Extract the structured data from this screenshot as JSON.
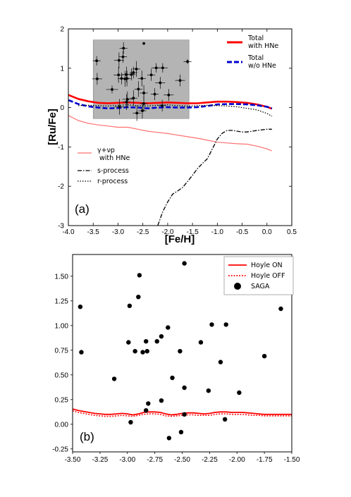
{
  "chart_data": [
    {
      "type": "line",
      "panel_label": "(a)",
      "xlabel": "[Fe/H]",
      "ylabel": "[Ru/Fe]",
      "xlim": [
        -4.0,
        0.5
      ],
      "ylim": [
        -3,
        2
      ],
      "xticks": [
        "-4.0",
        "-3.5",
        "-3.0",
        "-2.5",
        "-2.0",
        "-1.5",
        "-1.0",
        "-0.5",
        "0.0",
        "0.5"
      ],
      "yticks": [
        "-3",
        "-2",
        "-1",
        "0",
        "1",
        "2"
      ],
      "shaded_region": {
        "x": [
          -3.5,
          -1.57
        ],
        "y": [
          -0.28,
          1.72
        ],
        "color": "#b4b4b4"
      },
      "legend_top_right": [
        "Total\nwith HNe",
        "Total\nw/o HNe"
      ],
      "legend_bottom_left": [
        "γ+νp\n with HNe",
        "s-process",
        "r-process"
      ],
      "colors": {
        "total_hne": "#ff0000",
        "total_wo_hne": "#0000cc",
        "gamma": "#ff7070",
        "s": "#000000",
        "r": "#000000",
        "points": "#000000"
      },
      "series": [
        {
          "name": "Total\nwith HNe",
          "style": "solid-thick",
          "x": [
            -4.0,
            -3.8,
            -3.6,
            -3.4,
            -3.2,
            -3.0,
            -2.8,
            -2.6,
            -2.4,
            -2.2,
            -2.0,
            -1.8,
            -1.6,
            -1.4,
            -1.2,
            -1.0,
            -0.8,
            -0.6,
            -0.4,
            -0.2,
            0.0,
            0.1
          ],
          "y": [
            0.32,
            0.22,
            0.16,
            0.12,
            0.11,
            0.12,
            0.13,
            0.12,
            0.11,
            0.12,
            0.13,
            0.12,
            0.11,
            0.11,
            0.13,
            0.15,
            0.15,
            0.14,
            0.12,
            0.08,
            0.02,
            -0.03
          ]
        },
        {
          "name": "Total\nw/o HNe",
          "style": "dashed-thick",
          "x": [
            -4.0,
            -3.8,
            -3.6,
            -3.4,
            -3.2,
            -3.0,
            -2.8,
            -2.6,
            -2.4,
            -2.2,
            -2.0,
            -1.8,
            -1.6,
            -1.4,
            -1.2,
            -1.0,
            -0.8,
            -0.6,
            -0.4,
            -0.2,
            0.0,
            0.1
          ],
          "y": [
            0.19,
            0.09,
            0.03,
            0.0,
            -0.02,
            -0.01,
            0.01,
            0.0,
            -0.02,
            0.0,
            0.01,
            0.0,
            0.0,
            0.01,
            0.04,
            0.08,
            0.09,
            0.09,
            0.08,
            0.06,
            0.02,
            -0.02
          ]
        },
        {
          "name": "γ+νp\n with HNe",
          "style": "solid-thin",
          "x": [
            -4.0,
            -3.8,
            -3.6,
            -3.4,
            -3.2,
            -3.0,
            -2.8,
            -2.6,
            -2.4,
            -2.2,
            -2.0,
            -1.8,
            -1.6,
            -1.4,
            -1.2,
            -1.0,
            -0.8,
            -0.6,
            -0.4,
            -0.2,
            0.0,
            0.1
          ],
          "y": [
            -0.2,
            -0.33,
            -0.4,
            -0.44,
            -0.47,
            -0.5,
            -0.5,
            -0.55,
            -0.6,
            -0.63,
            -0.66,
            -0.7,
            -0.74,
            -0.78,
            -0.83,
            -0.88,
            -0.9,
            -0.92,
            -0.93,
            -0.98,
            -1.05,
            -1.1
          ]
        },
        {
          "name": "s-process",
          "style": "dashdot",
          "x": [
            -2.2,
            -2.1,
            -2.0,
            -1.9,
            -1.8,
            -1.7,
            -1.6,
            -1.5,
            -1.4,
            -1.3,
            -1.2,
            -1.1,
            -1.0,
            -0.9,
            -0.8,
            -0.7,
            -0.6,
            -0.5,
            -0.4,
            -0.3,
            -0.2,
            0.0,
            0.1
          ],
          "y": [
            -3.0,
            -2.65,
            -2.4,
            -2.2,
            -2.12,
            -2.03,
            -1.88,
            -1.72,
            -1.55,
            -1.42,
            -1.3,
            -1.05,
            -0.8,
            -0.65,
            -0.58,
            -0.58,
            -0.6,
            -0.62,
            -0.62,
            -0.6,
            -0.58,
            -0.55,
            -0.55
          ]
        },
        {
          "name": "r-process",
          "style": "dotted",
          "x": [
            -3.8,
            -3.6,
            -3.4,
            -3.2,
            -3.0,
            -2.8,
            -2.6,
            -2.4,
            -2.2,
            -2.0,
            -1.8,
            -1.6,
            -1.4,
            -1.2,
            -1.0,
            -0.8,
            -0.6,
            -0.4,
            -0.2,
            0.0,
            0.1
          ],
          "y": [
            0.05,
            0.06,
            0.05,
            0.04,
            0.06,
            0.07,
            0.05,
            0.04,
            0.06,
            0.07,
            0.05,
            0.04,
            0.05,
            0.06,
            0.05,
            0.04,
            0.02,
            -0.02,
            -0.06,
            -0.15,
            -0.22
          ]
        }
      ],
      "points": [
        {
          "x": -3.43,
          "y": 1.19,
          "xerr": 0.08,
          "yerr": 0.12
        },
        {
          "x": -3.42,
          "y": 0.73,
          "xerr": 0.1,
          "yerr": 0.15
        },
        {
          "x": -3.12,
          "y": 0.46,
          "xerr": 0.12,
          "yerr": 0.1
        },
        {
          "x": -2.99,
          "y": 0.83,
          "xerr": 0.1,
          "yerr": 0.2
        },
        {
          "x": -2.98,
          "y": 1.2,
          "xerr": 0.1,
          "yerr": 0.2
        },
        {
          "x": -2.97,
          "y": 0.02,
          "xerr": 0.1,
          "yerr": 0.2
        },
        {
          "x": -2.93,
          "y": 0.74,
          "xerr": 0.08,
          "yerr": 0.15
        },
        {
          "x": -2.9,
          "y": 1.29,
          "xerr": 0.08,
          "yerr": 0.15
        },
        {
          "x": -2.89,
          "y": 1.51,
          "xerr": 0.08,
          "yerr": 0.15
        },
        {
          "x": -2.86,
          "y": 0.73,
          "xerr": 0.08,
          "yerr": 0.2
        },
        {
          "x": -2.83,
          "y": 0.84,
          "xerr": 0.08,
          "yerr": 0.2
        },
        {
          "x": -2.83,
          "y": 0.14,
          "xerr": 0.08,
          "yerr": 0.2
        },
        {
          "x": -2.82,
          "y": 0.74,
          "xerr": 0.08,
          "yerr": 0.2
        },
        {
          "x": -2.81,
          "y": 0.21,
          "xerr": 0.1,
          "yerr": 0.2
        },
        {
          "x": -2.73,
          "y": 0.84,
          "xerr": 0.08,
          "yerr": 0.15
        },
        {
          "x": -2.69,
          "y": 0.89,
          "xerr": 0.08,
          "yerr": 0.15
        },
        {
          "x": -2.69,
          "y": 0.24,
          "xerr": 0.08,
          "yerr": 0.2
        },
        {
          "x": -2.63,
          "y": 0.98,
          "xerr": 0.08,
          "yerr": 0.2
        },
        {
          "x": -2.62,
          "y": -0.14,
          "xerr": 0.08,
          "yerr": 0.2
        },
        {
          "x": -2.59,
          "y": 0.47,
          "xerr": 0.08,
          "yerr": 0.2
        },
        {
          "x": -2.52,
          "y": 0.74,
          "xerr": 0.08,
          "yerr": 0.2
        },
        {
          "x": -2.51,
          "y": -0.08,
          "xerr": 0.08,
          "yerr": 0.2
        },
        {
          "x": -2.48,
          "y": 0.37,
          "xerr": 0.08,
          "yerr": 0.2
        },
        {
          "x": -2.48,
          "y": 0.1,
          "xerr": 0.08,
          "yerr": 0.2
        },
        {
          "x": -2.48,
          "y": 1.63,
          "xerr": 0.0,
          "yerr": 0.0
        },
        {
          "x": -2.33,
          "y": 0.83,
          "xerr": 0.08,
          "yerr": 0.15
        },
        {
          "x": -2.26,
          "y": 0.34,
          "xerr": 0.08,
          "yerr": 0.15
        },
        {
          "x": -2.23,
          "y": 1.01,
          "xerr": 0.1,
          "yerr": 0.12
        },
        {
          "x": -2.15,
          "y": 0.63,
          "xerr": 0.1,
          "yerr": 0.15
        },
        {
          "x": -2.11,
          "y": 0.05,
          "xerr": 0.08,
          "yerr": 0.15
        },
        {
          "x": -2.1,
          "y": 1.01,
          "xerr": 0.1,
          "yerr": 0.12
        },
        {
          "x": -1.98,
          "y": 0.32,
          "xerr": 0.1,
          "yerr": 0.15
        },
        {
          "x": -1.75,
          "y": 0.69,
          "xerr": 0.1,
          "yerr": 0.15
        },
        {
          "x": -1.6,
          "y": 1.17,
          "xerr": 0.08,
          "yerr": 0.06
        }
      ]
    },
    {
      "type": "scatter",
      "panel_label": "(b)",
      "xlim": [
        -3.5,
        -1.5
      ],
      "ylim": [
        -0.28,
        1.72
      ],
      "xticks": [
        "-3.50",
        "-3.25",
        "-3.00",
        "-2.75",
        "-2.50",
        "-2.25",
        "-2.00",
        "-1.75",
        "-1.50"
      ],
      "yticks": [
        "-0.25",
        "0.00",
        "0.25",
        "0.50",
        "0.75",
        "1.00",
        "1.25",
        "1.50"
      ],
      "legend": [
        "Hoyle ON",
        "Hoyle OFF",
        "SAGA"
      ],
      "colors": {
        "hoyle_on": "#ff0000",
        "hoyle_off": "#ff0000",
        "saga": "#000000"
      },
      "series": [
        {
          "name": "Hoyle ON",
          "style": "solid",
          "x": [
            -3.5,
            -3.45,
            -3.4,
            -3.35,
            -3.3,
            -3.25,
            -3.2,
            -3.15,
            -3.1,
            -3.05,
            -3.0,
            -2.95,
            -2.9,
            -2.85,
            -2.8,
            -2.75,
            -2.7,
            -2.65,
            -2.6,
            -2.55,
            -2.5,
            -2.45,
            -2.4,
            -2.35,
            -2.3,
            -2.25,
            -2.2,
            -2.15,
            -2.1,
            -2.05,
            -2.0,
            -1.95,
            -1.9,
            -1.85,
            -1.8,
            -1.75,
            -1.7,
            -1.65,
            -1.6,
            -1.55,
            -1.5
          ],
          "y": [
            0.155,
            0.14,
            0.13,
            0.12,
            0.11,
            0.105,
            0.1,
            0.1,
            0.105,
            0.11,
            0.105,
            0.095,
            0.105,
            0.12,
            0.125,
            0.125,
            0.12,
            0.105,
            0.095,
            0.1,
            0.11,
            0.115,
            0.115,
            0.11,
            0.105,
            0.11,
            0.12,
            0.125,
            0.125,
            0.12,
            0.12,
            0.12,
            0.115,
            0.11,
            0.105,
            0.1,
            0.1,
            0.1,
            0.1,
            0.1,
            0.1
          ]
        },
        {
          "name": "Hoyle OFF",
          "style": "dotted",
          "x": [
            -3.5,
            -3.45,
            -3.4,
            -3.35,
            -3.3,
            -3.25,
            -3.2,
            -3.15,
            -3.1,
            -3.05,
            -3.0,
            -2.95,
            -2.9,
            -2.85,
            -2.8,
            -2.75,
            -2.7,
            -2.65,
            -2.6,
            -2.55,
            -2.5,
            -2.45,
            -2.4,
            -2.35,
            -2.3,
            -2.25,
            -2.2,
            -2.15,
            -2.1,
            -2.05,
            -2.0,
            -1.95,
            -1.9,
            -1.85,
            -1.8,
            -1.75,
            -1.7,
            -1.65,
            -1.6,
            -1.55,
            -1.5
          ],
          "y": [
            0.135,
            0.12,
            0.11,
            0.1,
            0.09,
            0.085,
            0.08,
            0.08,
            0.085,
            0.09,
            0.085,
            0.08,
            0.09,
            0.1,
            0.105,
            0.105,
            0.1,
            0.085,
            0.08,
            0.085,
            0.09,
            0.095,
            0.095,
            0.09,
            0.09,
            0.09,
            0.1,
            0.105,
            0.105,
            0.1,
            0.1,
            0.1,
            0.095,
            0.09,
            0.09,
            0.085,
            0.085,
            0.085,
            0.085,
            0.085,
            0.085
          ]
        }
      ],
      "points": [
        {
          "x": -3.43,
          "y": 1.19
        },
        {
          "x": -3.42,
          "y": 0.73
        },
        {
          "x": -3.12,
          "y": 0.46
        },
        {
          "x": -2.99,
          "y": 0.83
        },
        {
          "x": -2.98,
          "y": 1.2
        },
        {
          "x": -2.97,
          "y": 0.02
        },
        {
          "x": -2.93,
          "y": 0.74
        },
        {
          "x": -2.9,
          "y": 1.29
        },
        {
          "x": -2.89,
          "y": 1.51
        },
        {
          "x": -2.86,
          "y": 0.73
        },
        {
          "x": -2.83,
          "y": 0.84
        },
        {
          "x": -2.83,
          "y": 0.14
        },
        {
          "x": -2.82,
          "y": 0.74
        },
        {
          "x": -2.81,
          "y": 0.21
        },
        {
          "x": -2.73,
          "y": 0.84
        },
        {
          "x": -2.69,
          "y": 0.89
        },
        {
          "x": -2.69,
          "y": 0.24
        },
        {
          "x": -2.63,
          "y": 0.98
        },
        {
          "x": -2.62,
          "y": -0.14
        },
        {
          "x": -2.59,
          "y": 0.47
        },
        {
          "x": -2.52,
          "y": 0.74
        },
        {
          "x": -2.51,
          "y": -0.08
        },
        {
          "x": -2.48,
          "y": 0.37
        },
        {
          "x": -2.48,
          "y": 0.1
        },
        {
          "x": -2.48,
          "y": 1.63
        },
        {
          "x": -2.33,
          "y": 0.83
        },
        {
          "x": -2.26,
          "y": 0.34
        },
        {
          "x": -2.23,
          "y": 1.01
        },
        {
          "x": -2.15,
          "y": 0.63
        },
        {
          "x": -2.11,
          "y": 0.05
        },
        {
          "x": -2.1,
          "y": 1.01
        },
        {
          "x": -1.98,
          "y": 0.32
        },
        {
          "x": -1.75,
          "y": 0.69
        },
        {
          "x": -1.6,
          "y": 1.17
        }
      ]
    }
  ]
}
